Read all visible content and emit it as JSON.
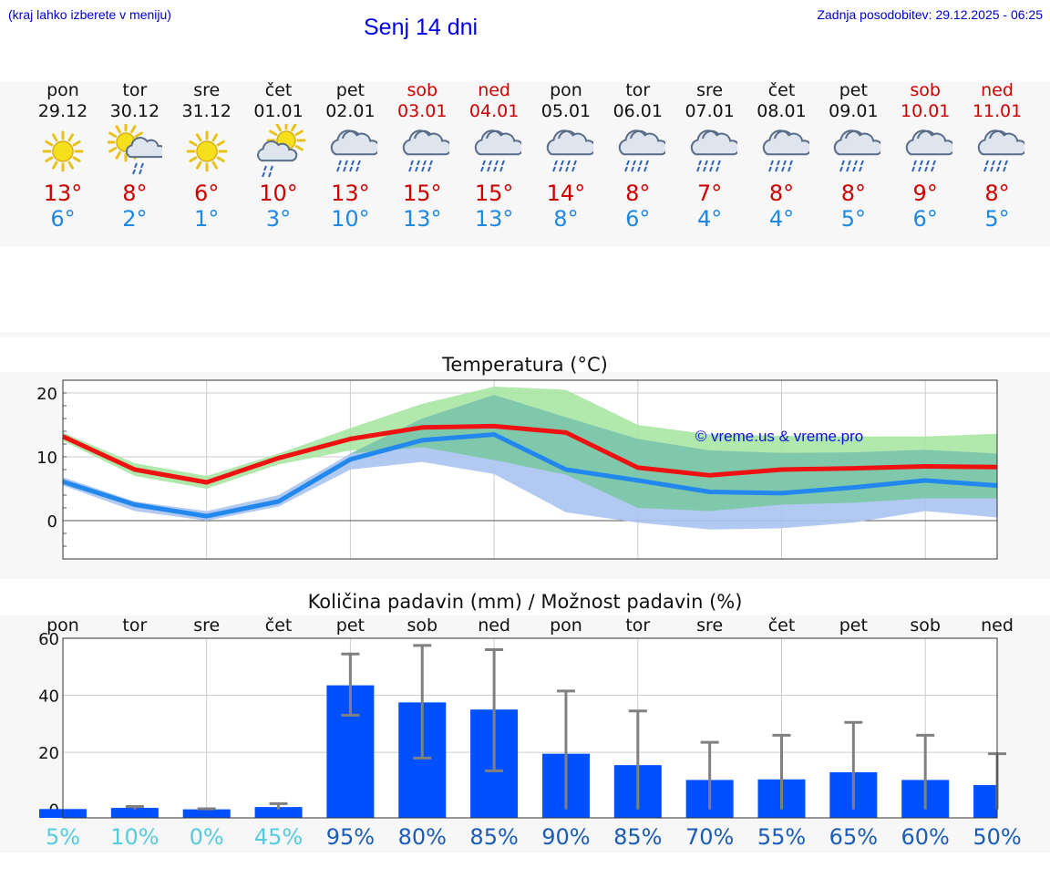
{
  "header": {
    "hint": "(kraj lahko izberete v meniju)",
    "title": "Senj 14 dni",
    "updated": "Zadnja posodobitev: 29.12.2025 - 06:25"
  },
  "days": [
    {
      "name": "pon",
      "date": "29.12",
      "icon": "sun-icon",
      "tmax": "13°",
      "tmin": "6°",
      "weekend": false
    },
    {
      "name": "tor",
      "date": "30.12",
      "icon": "sun-cloud-rain-icon",
      "tmax": "8°",
      "tmin": "2°",
      "weekend": false
    },
    {
      "name": "sre",
      "date": "31.12",
      "icon": "sun-icon",
      "tmax": "6°",
      "tmin": "1°",
      "weekend": false
    },
    {
      "name": "čet",
      "date": "01.01",
      "icon": "cloud-sun-rain-icon",
      "tmax": "10°",
      "tmin": "3°",
      "weekend": false
    },
    {
      "name": "pet",
      "date": "02.01",
      "icon": "rain-cloud-icon",
      "tmax": "13°",
      "tmin": "10°",
      "weekend": false
    },
    {
      "name": "sob",
      "date": "03.01",
      "icon": "rain-cloud-icon",
      "tmax": "15°",
      "tmin": "13°",
      "weekend": true
    },
    {
      "name": "ned",
      "date": "04.01",
      "icon": "rain-cloud-icon",
      "tmax": "15°",
      "tmin": "13°",
      "weekend": true
    },
    {
      "name": "pon",
      "date": "05.01",
      "icon": "rain-cloud-icon",
      "tmax": "14°",
      "tmin": "8°",
      "weekend": false
    },
    {
      "name": "tor",
      "date": "06.01",
      "icon": "rain-cloud-icon",
      "tmax": "8°",
      "tmin": "6°",
      "weekend": false
    },
    {
      "name": "sre",
      "date": "07.01",
      "icon": "rain-cloud-icon",
      "tmax": "7°",
      "tmin": "4°",
      "weekend": false
    },
    {
      "name": "čet",
      "date": "08.01",
      "icon": "rain-cloud-icon",
      "tmax": "8°",
      "tmin": "4°",
      "weekend": false
    },
    {
      "name": "pet",
      "date": "09.01",
      "icon": "rain-cloud-icon",
      "tmax": "8°",
      "tmin": "5°",
      "weekend": false
    },
    {
      "name": "sob",
      "date": "10.01",
      "icon": "rain-cloud-icon",
      "tmax": "9°",
      "tmin": "6°",
      "weekend": true
    },
    {
      "name": "ned",
      "date": "11.01",
      "icon": "rain-cloud-icon",
      "tmax": "8°",
      "tmin": "5°",
      "weekend": true
    }
  ],
  "colors": {
    "max_line": "#ee1111",
    "min_line": "#2288ee",
    "max_band": "#a8e6a3",
    "min_band": "#aac4f0",
    "overlap": "#7bc8a4",
    "bar": "#0050ff",
    "error": "#808080",
    "pct_low": "#55ccdd",
    "pct_high": "#1a5cb8"
  },
  "chart_data": [
    {
      "type": "line",
      "title": "Temperatura (°C)",
      "watermark": "© vreme.us & vreme.pro",
      "ylim": [
        -6,
        22
      ],
      "yticks": [
        0,
        10,
        20
      ],
      "x": [
        0,
        1,
        2,
        3,
        4,
        5,
        6,
        7,
        8,
        9,
        10,
        11,
        12,
        13
      ],
      "series": [
        {
          "name": "max",
          "values": [
            13.2,
            8,
            6,
            9.8,
            12.8,
            14.6,
            14.8,
            13.8,
            8.3,
            7.1,
            8,
            8.2,
            8.5,
            8.4
          ]
        },
        {
          "name": "min",
          "values": [
            6.1,
            2.5,
            0.7,
            3,
            9.6,
            12.6,
            13.5,
            8,
            6.3,
            4.5,
            4.3,
            5.2,
            6.3,
            5.5
          ]
        },
        {
          "name": "max_band_upper",
          "values": [
            13.8,
            9,
            7,
            10.5,
            14.5,
            18.3,
            21,
            20.5,
            15,
            13.5,
            13.3,
            13.2,
            13.2,
            13.6
          ]
        },
        {
          "name": "max_band_lower",
          "values": [
            12.5,
            7,
            5,
            8.8,
            11,
            11.5,
            9.5,
            7.2,
            2,
            1.5,
            2.5,
            2.8,
            3.5,
            3.5
          ]
        },
        {
          "name": "min_band_upper",
          "values": [
            6.8,
            3,
            1.5,
            4,
            10.5,
            16,
            19.7,
            16.2,
            12.8,
            11,
            10.6,
            10.7,
            11.1,
            10.5
          ]
        },
        {
          "name": "min_band_lower",
          "values": [
            5.5,
            1.5,
            0,
            2.2,
            8,
            9.2,
            7.3,
            1.3,
            -0.3,
            -1.4,
            -1.2,
            -0.3,
            1.5,
            0.5
          ]
        }
      ]
    },
    {
      "type": "bar",
      "title": "Količina padavin (mm) / Možnost padavin (%)",
      "ylim": [
        -3,
        60
      ],
      "yticks": [
        0,
        20,
        40,
        60
      ],
      "categories": [
        "pon",
        "tor",
        "sre",
        "čet",
        "pet",
        "sob",
        "ned",
        "pon",
        "tor",
        "sre",
        "čet",
        "pet",
        "sob",
        "ned"
      ],
      "values": [
        0.1,
        0.5,
        0,
        0.8,
        43.5,
        37.5,
        35,
        19.5,
        15.5,
        10.3,
        10.5,
        13,
        10.3,
        8.5
      ],
      "error_low": [
        0,
        0,
        0,
        0,
        33,
        18,
        13.5,
        0,
        0,
        0,
        0,
        0,
        0,
        0
      ],
      "error_high": [
        0,
        1,
        0.2,
        2,
        54.5,
        57.5,
        56,
        41.5,
        34.5,
        23.5,
        26,
        30.5,
        26,
        19.5
      ],
      "probability": [
        "5%",
        "10%",
        "0%",
        "45%",
        "95%",
        "80%",
        "85%",
        "90%",
        "85%",
        "70%",
        "55%",
        "65%",
        "60%",
        "50%"
      ]
    }
  ]
}
